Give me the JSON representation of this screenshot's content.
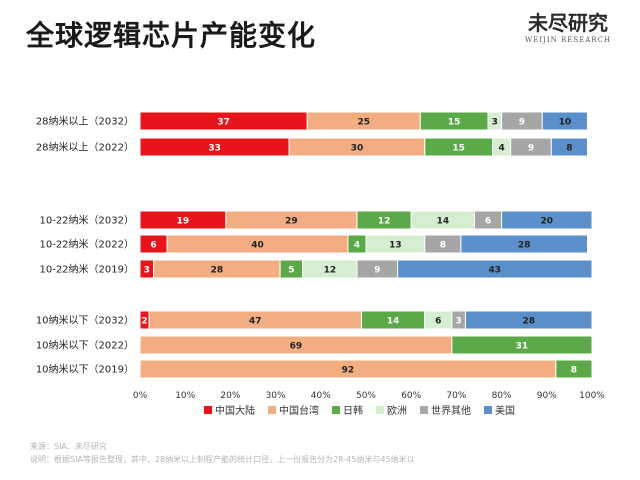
{
  "header": {
    "title": "全球逻辑芯片产能变化",
    "brand_cn": "未尽研究",
    "brand_en": "WEIJIN RESEARCH"
  },
  "footer": {
    "source": "来源：SIA、未尽研究",
    "note": "说明：根据SIA等报告整理，其中，28纳米以上制程产能的统计口径，上一份报告分为2R-45纳米与45纳米以"
  },
  "chart_data": {
    "type": "bar",
    "orientation": "horizontal",
    "stacked": true,
    "percent": true,
    "categories": [
      "28纳米以上（2032）",
      "28纳米以上（2022）",
      "10-22纳米（2032）",
      "10-22纳米（2022）",
      "10-22纳米（2019）",
      "10纳米以下（2032）",
      "10纳米以下（2022）",
      "10纳米以下（2019）"
    ],
    "groups": [
      [
        0,
        1
      ],
      [
        2,
        3,
        4
      ],
      [
        5,
        6,
        7
      ]
    ],
    "series": [
      {
        "name": "中国大陆",
        "color": "#e8141c",
        "label_color": "#ffffff",
        "values": [
          37,
          33,
          19,
          6,
          3,
          2,
          0,
          0
        ]
      },
      {
        "name": "中国台湾",
        "color": "#f2ad82",
        "label_color": "#222222",
        "values": [
          25,
          30,
          29,
          40,
          28,
          47,
          69,
          92
        ]
      },
      {
        "name": "日韩",
        "color": "#5ca94a",
        "label_color": "#ffffff",
        "values": [
          15,
          15,
          12,
          4,
          5,
          14,
          31,
          8
        ]
      },
      {
        "name": "欧洲",
        "color": "#d6edd2",
        "label_color": "#222222",
        "values": [
          3,
          4,
          14,
          13,
          12,
          6,
          0,
          0
        ]
      },
      {
        "name": "世界其他",
        "color": "#a6a6a6",
        "label_color": "#ffffff",
        "values": [
          9,
          9,
          6,
          8,
          9,
          3,
          0,
          0
        ]
      },
      {
        "name": "美国",
        "color": "#5b8fc9",
        "label_color": "#222222",
        "values": [
          10,
          8,
          20,
          28,
          43,
          28,
          0,
          0
        ]
      }
    ],
    "xlim": [
      0,
      100
    ],
    "xticks": [
      "0%",
      "10%",
      "20%",
      "30%",
      "40%",
      "50%",
      "60%",
      "70%",
      "80%",
      "90%",
      "100%"
    ],
    "grid": false,
    "legend_position": "bottom"
  }
}
